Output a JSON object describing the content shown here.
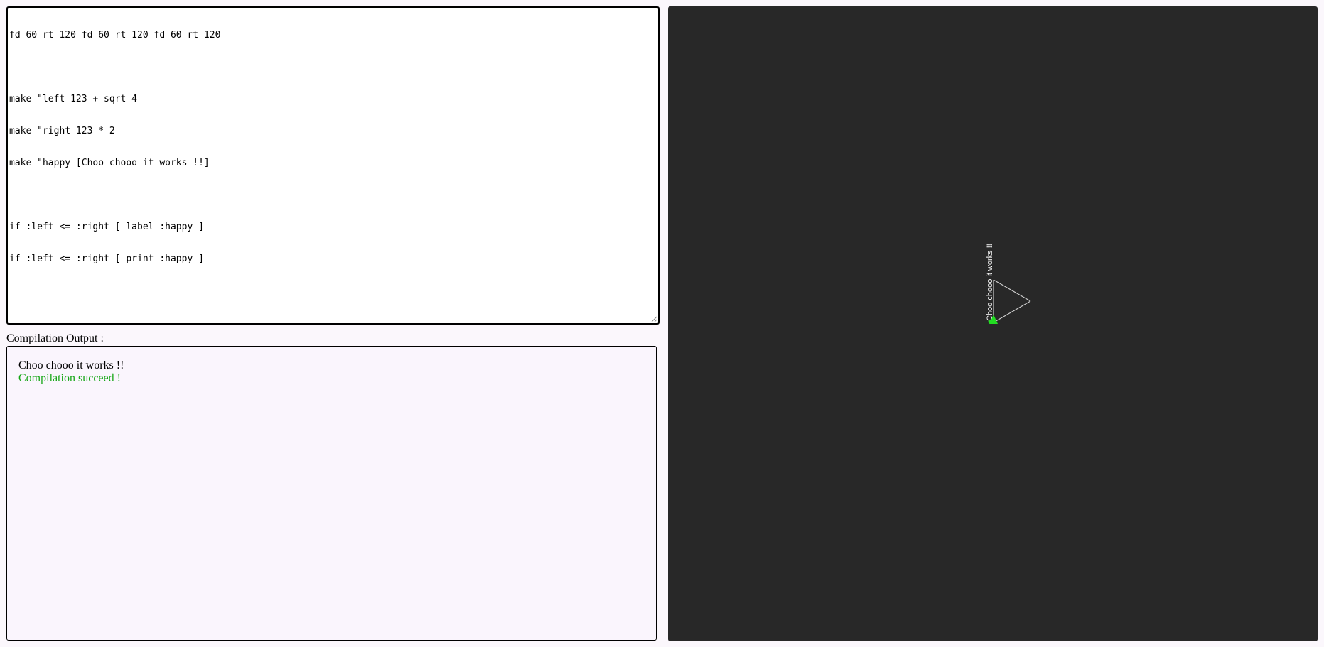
{
  "editor": {
    "lines": [
      "fd 60 rt 120 fd 60 rt 120 fd 60 rt 120",
      "",
      "make \"left 123 + sqrt 4",
      "make \"right 123 * 2",
      "make \"happy [Choo chooo it works !!]",
      "",
      "if :left <= :right [ label :happy ]",
      "if :left <= :right [ print :happy ]"
    ]
  },
  "output": {
    "label": "Compilation Output :",
    "printed": "Choo chooo it works !!",
    "status": "Compilation succeed !"
  },
  "canvas": {
    "label_text": "Choo chooo it works !!",
    "background": "#282828",
    "line_color": "#cccccc",
    "turtle_color": "#22dd22"
  },
  "colors": {
    "success": "#13a513"
  }
}
